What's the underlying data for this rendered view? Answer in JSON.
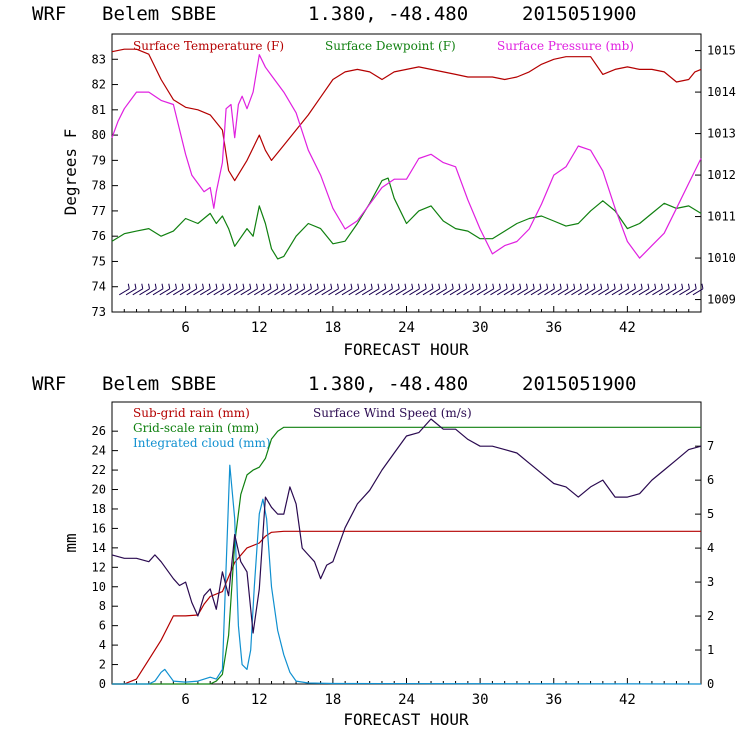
{
  "chart_data": [
    {
      "type": "line",
      "header": {
        "model": "WRF",
        "station": "Belem SBBE",
        "coords": "1.380, -48.480",
        "run": "2015051900"
      },
      "xlabel": "FORECAST HOUR",
      "ylabel": "Degrees F",
      "xlim": [
        0,
        48
      ],
      "ylim": [
        73,
        84
      ],
      "y2lim": [
        1008.7,
        1015.4
      ],
      "xticks": [
        6,
        12,
        18,
        24,
        30,
        36,
        42
      ],
      "yticks": [
        73,
        74,
        75,
        76,
        77,
        78,
        79,
        80,
        81,
        82,
        83
      ],
      "y2ticks": [
        1009,
        1010,
        1011,
        1012,
        1013,
        1014,
        1015
      ],
      "series": [
        {
          "name": "Surface Temperature (F)",
          "color": "#b40000",
          "axis": "left",
          "x": [
            0,
            1,
            2,
            3,
            4,
            5,
            6,
            7,
            8,
            9,
            9.5,
            10,
            11,
            12,
            12.5,
            13,
            14,
            15,
            16,
            17,
            18,
            19,
            20,
            21,
            22,
            23,
            24,
            25,
            26,
            27,
            28,
            29,
            30,
            31,
            32,
            33,
            34,
            35,
            36,
            37,
            38,
            39,
            40,
            41,
            42,
            43,
            44,
            45,
            46,
            47,
            47.5,
            48
          ],
          "y": [
            83.3,
            83.4,
            83.4,
            83.2,
            82.2,
            81.4,
            81.1,
            81.0,
            80.8,
            80.2,
            78.6,
            78.2,
            79.0,
            80.0,
            79.4,
            79.0,
            79.6,
            80.2,
            80.8,
            81.5,
            82.2,
            82.5,
            82.6,
            82.5,
            82.2,
            82.5,
            82.6,
            82.7,
            82.6,
            82.5,
            82.4,
            82.3,
            82.3,
            82.3,
            82.2,
            82.3,
            82.5,
            82.8,
            83.0,
            83.1,
            83.1,
            83.1,
            82.4,
            82.6,
            82.7,
            82.6,
            82.6,
            82.5,
            82.1,
            82.2,
            82.5,
            82.6
          ]
        },
        {
          "name": "Surface Dewpoint (F)",
          "color": "#108010",
          "axis": "left",
          "x": [
            0,
            1,
            2,
            3,
            4,
            5,
            6,
            7,
            8,
            8.5,
            9,
            9.5,
            10,
            11,
            11.5,
            12,
            12.5,
            13,
            13.5,
            14,
            15,
            16,
            17,
            18,
            19,
            20,
            21,
            22,
            22.5,
            23,
            24,
            25,
            26,
            27,
            28,
            29,
            30,
            31,
            32,
            33,
            34,
            35,
            36,
            37,
            38,
            39,
            40,
            41,
            42,
            43,
            44,
            45,
            46,
            47,
            48
          ],
          "y": [
            75.8,
            76.1,
            76.2,
            76.3,
            76.0,
            76.2,
            76.7,
            76.5,
            76.9,
            76.5,
            76.8,
            76.3,
            75.6,
            76.3,
            76.0,
            77.2,
            76.5,
            75.5,
            75.1,
            75.2,
            76.0,
            76.5,
            76.3,
            75.7,
            75.8,
            76.5,
            77.3,
            78.2,
            78.3,
            77.5,
            76.5,
            77.0,
            77.2,
            76.6,
            76.3,
            76.2,
            75.9,
            75.9,
            76.2,
            76.5,
            76.7,
            76.8,
            76.6,
            76.4,
            76.5,
            77.0,
            77.4,
            77.0,
            76.3,
            76.5,
            76.9,
            77.3,
            77.1,
            77.2,
            76.9
          ]
        },
        {
          "name": "Surface Pressure (mb)",
          "color": "#e020e0",
          "axis": "right",
          "x": [
            0,
            0.5,
            1,
            2,
            3,
            4,
            5,
            6,
            6.5,
            7,
            7.5,
            8,
            8.3,
            8.5,
            9,
            9.3,
            9.7,
            10,
            10.3,
            10.6,
            11,
            11.5,
            12,
            12.5,
            13,
            14,
            15,
            16,
            17,
            18,
            19,
            20,
            21,
            22,
            23,
            24,
            25,
            26,
            27,
            28,
            29,
            30,
            31,
            32,
            33,
            34,
            35,
            36,
            37,
            38,
            39,
            40,
            41,
            42,
            43,
            44,
            45,
            46,
            47,
            48
          ],
          "y": [
            1012.9,
            1013.3,
            1013.6,
            1014.0,
            1014.0,
            1013.8,
            1013.7,
            1012.5,
            1012.0,
            1011.8,
            1011.6,
            1011.7,
            1011.2,
            1011.6,
            1012.3,
            1013.6,
            1013.7,
            1012.9,
            1013.7,
            1013.9,
            1013.6,
            1014.0,
            1014.9,
            1014.6,
            1014.4,
            1014.0,
            1013.5,
            1012.6,
            1012.0,
            1011.2,
            1010.7,
            1010.9,
            1011.3,
            1011.7,
            1011.9,
            1011.9,
            1012.4,
            1012.5,
            1012.3,
            1012.2,
            1011.4,
            1010.7,
            1010.1,
            1010.3,
            1010.4,
            1010.7,
            1011.3,
            1012.0,
            1012.2,
            1012.7,
            1012.6,
            1012.1,
            1011.2,
            1010.4,
            1010.0,
            1010.3,
            1010.6,
            1011.2,
            1011.8,
            1012.4
          ]
        }
      ],
      "wind_barbs_row": {
        "y": 73.8,
        "color": "#1a0050"
      }
    },
    {
      "type": "line",
      "header": {
        "model": "WRF",
        "station": "Belem SBBE",
        "coords": "1.380, -48.480",
        "run": "2015051900"
      },
      "xlabel": "FORECAST HOUR",
      "ylabel": "mm",
      "xlim": [
        0,
        48
      ],
      "ylim": [
        0,
        29
      ],
      "y2lim": [
        0,
        8.3
      ],
      "xticks": [
        6,
        12,
        18,
        24,
        30,
        36,
        42
      ],
      "yticks": [
        0,
        2,
        4,
        6,
        8,
        10,
        12,
        14,
        16,
        18,
        20,
        22,
        24,
        26
      ],
      "y2ticks": [
        0,
        1,
        2,
        3,
        4,
        5,
        6,
        7
      ],
      "series": [
        {
          "name": "Sub-grid rain (mm)",
          "color": "#b40000",
          "axis": "left",
          "x": [
            0,
            1,
            2,
            3,
            4,
            5,
            6,
            7,
            7.5,
            8,
            9,
            10,
            11,
            12,
            12.5,
            13,
            14,
            15,
            16,
            17,
            18,
            19,
            20,
            30,
            40,
            48
          ],
          "y": [
            0,
            0,
            0.5,
            2.5,
            4.5,
            7.0,
            7.0,
            7.1,
            8.2,
            9.0,
            9.5,
            12.5,
            14.0,
            14.5,
            15.2,
            15.6,
            15.7,
            15.7,
            15.7,
            15.7,
            15.7,
            15.7,
            15.7,
            15.7,
            15.7,
            15.7
          ]
        },
        {
          "name": "Grid-scale rain (mm)",
          "color": "#108010",
          "axis": "left",
          "x": [
            0,
            8,
            8.5,
            9,
            9.5,
            10,
            10.5,
            11,
            11.5,
            12,
            12.5,
            13,
            13.5,
            14,
            15,
            20,
            30,
            40,
            48
          ],
          "y": [
            0,
            0,
            0.3,
            1.0,
            5.0,
            14.5,
            19.5,
            21.5,
            22.0,
            22.3,
            23.2,
            25.2,
            26.0,
            26.4,
            26.4,
            26.4,
            26.4,
            26.4,
            26.4
          ]
        },
        {
          "name": "Integrated cloud (mm)",
          "color": "#1090d0",
          "axis": "left",
          "x": [
            0,
            3,
            3.5,
            4,
            4.3,
            4.6,
            5,
            6,
            7,
            8,
            8.5,
            9,
            9.3,
            9.6,
            10,
            10.3,
            10.6,
            11,
            11.3,
            11.6,
            12,
            12.3,
            12.6,
            13,
            13.5,
            14,
            14.5,
            15,
            16,
            18,
            48
          ],
          "y": [
            0,
            0,
            0.3,
            1.2,
            1.5,
            1.0,
            0.3,
            0.2,
            0.3,
            0.7,
            0.5,
            1.5,
            12.0,
            22.5,
            17.0,
            6.0,
            2.0,
            1.5,
            3.5,
            10.0,
            17.5,
            19.0,
            17.0,
            10.0,
            5.5,
            3.0,
            1.2,
            0.3,
            0.1,
            0.05,
            0
          ]
        },
        {
          "name": "Surface Wind Speed (m/s)",
          "color": "#2a0a50",
          "axis": "right",
          "x": [
            0,
            1,
            2,
            3,
            3.5,
            4,
            5,
            5.5,
            6,
            6.5,
            7,
            7.5,
            8,
            8.5,
            9,
            9.5,
            10,
            10.5,
            11,
            11.5,
            12,
            12.5,
            13,
            13.5,
            14,
            14.5,
            15,
            15.5,
            16,
            16.5,
            17,
            17.5,
            18,
            19,
            20,
            21,
            22,
            23,
            24,
            25,
            26,
            27,
            28,
            29,
            30,
            31,
            32,
            33,
            34,
            35,
            36,
            37,
            38,
            39,
            40,
            41,
            42,
            43,
            44,
            45,
            46,
            47,
            48
          ],
          "y": [
            3.8,
            3.7,
            3.7,
            3.6,
            3.8,
            3.6,
            3.1,
            2.9,
            3.0,
            2.4,
            2.0,
            2.6,
            2.8,
            2.2,
            3.3,
            2.6,
            4.4,
            3.6,
            3.3,
            1.5,
            2.8,
            5.5,
            5.2,
            5.0,
            5.0,
            5.8,
            5.3,
            4.0,
            3.8,
            3.6,
            3.1,
            3.5,
            3.6,
            4.6,
            5.3,
            5.7,
            6.3,
            6.8,
            7.3,
            7.4,
            7.8,
            7.5,
            7.5,
            7.2,
            7.0,
            7.0,
            6.9,
            6.8,
            6.5,
            6.2,
            5.9,
            5.8,
            5.5,
            5.8,
            6.0,
            5.5,
            5.5,
            5.6,
            6.0,
            6.3,
            6.6,
            6.9,
            7.0
          ]
        }
      ]
    }
  ]
}
